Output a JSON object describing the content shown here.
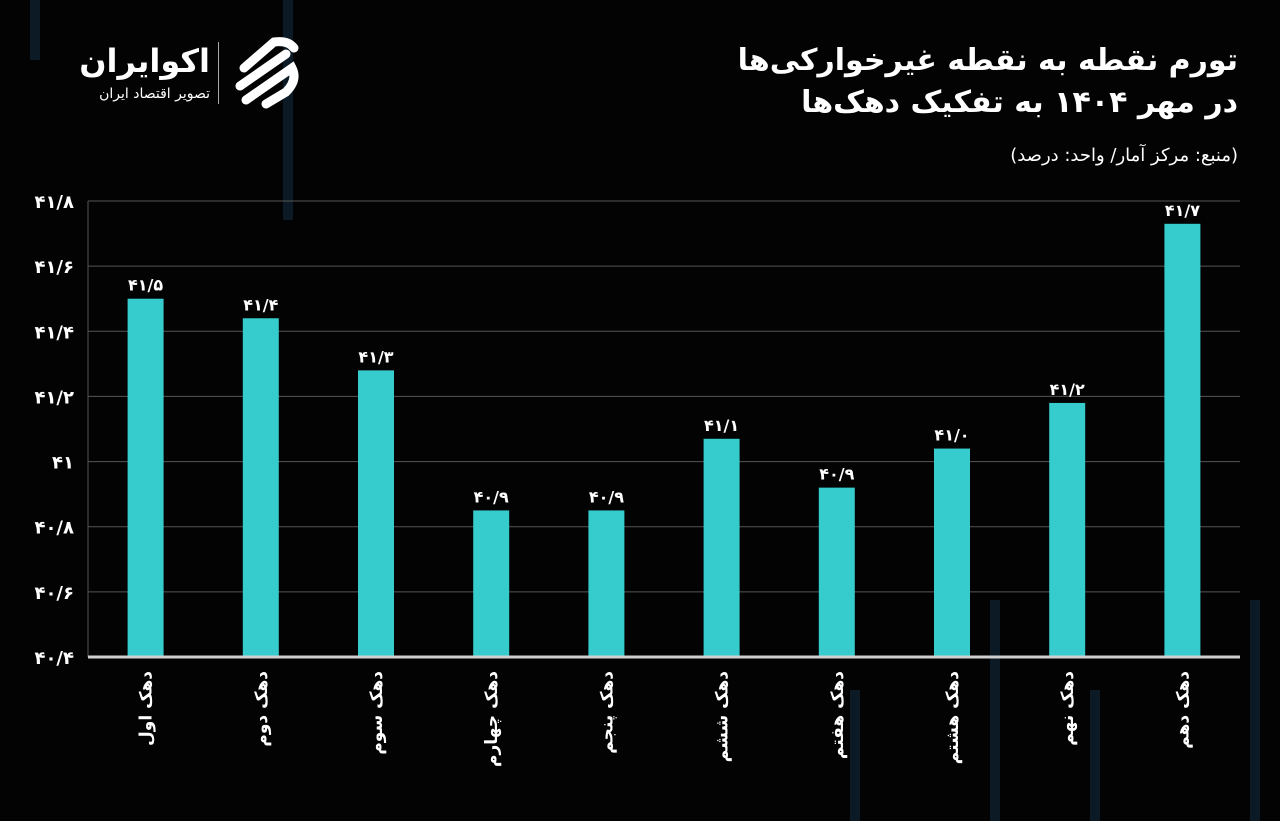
{
  "header": {
    "title_line1": "تورم نقطه به نقطه غیرخوارکی‌ها",
    "title_line2": "در مهر ۱۴۰۴ به تفکیک دهک‌ها",
    "source": "(منبع: مرکز آمار/ واحد: درصد)"
  },
  "logo": {
    "name": "اکوایران",
    "tagline": "تصویر اقتصاد ایران"
  },
  "colors": {
    "bar": "#36cbcc",
    "background": "#030303",
    "grid": "#555555",
    "text": "#ffffff"
  },
  "chart_data": {
    "type": "bar",
    "title": "تورم نقطه به نقطه غیرخوارکی‌ها در مهر ۱۴۰۴ به تفکیک دهک‌ها",
    "categories": [
      "دهک اول",
      "دهک دوم",
      "دهک سوم",
      "دهک چهارم",
      "دهک پنجم",
      "دهک ششم",
      "دهک هفتم",
      "دهک هشتم",
      "دهک نهم",
      "دهک دهم"
    ],
    "values": [
      41.5,
      41.44,
      41.28,
      40.85,
      40.85,
      41.07,
      40.92,
      41.04,
      41.18,
      41.73
    ],
    "data_labels": [
      "۴۱/۵",
      "۴۱/۴",
      "۴۱/۳",
      "۴۰/۹",
      "۴۰/۹",
      "۴۱/۱",
      "۴۰/۹",
      "۴۱/۰",
      "۴۱/۲",
      "۴۱/۷"
    ],
    "ylim": [
      40.4,
      41.8
    ],
    "yticks": [
      40.4,
      40.6,
      40.8,
      41,
      41.2,
      41.4,
      41.6,
      41.8
    ],
    "ytick_labels": [
      "۴۰/۴",
      "۴۰/۶",
      "۴۰/۸",
      "۴۱",
      "۴۱/۲",
      "۴۱/۴",
      "۴۱/۶",
      "۴۱/۸"
    ],
    "grid": true,
    "xlabel": "",
    "ylabel": ""
  }
}
